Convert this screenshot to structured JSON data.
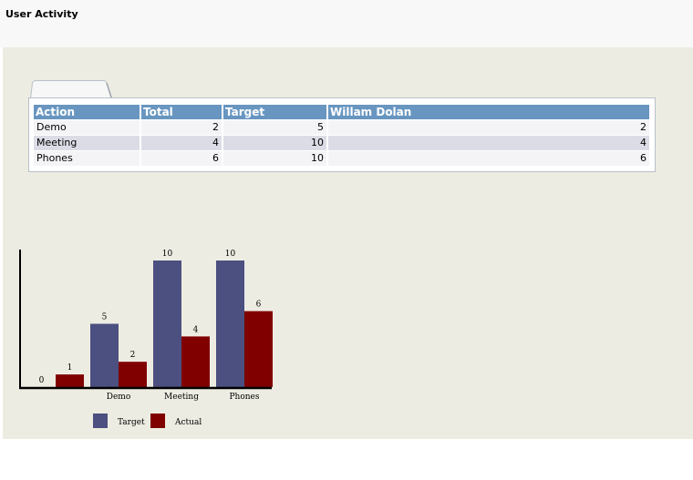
{
  "page": {
    "title": "User Activity"
  },
  "table": {
    "headers": [
      "Action",
      "Total",
      "Target",
      "Willam Dolan"
    ],
    "rows": [
      {
        "action": "Demo",
        "total": "2",
        "target": "5",
        "user": "2"
      },
      {
        "action": "Meeting",
        "total": "4",
        "target": "10",
        "user": "4"
      },
      {
        "action": "Phones",
        "total": "6",
        "target": "10",
        "user": "6"
      }
    ]
  },
  "chart_data": {
    "type": "bar",
    "categories": [
      "",
      "Demo",
      "Meeting",
      "Phones"
    ],
    "series": [
      {
        "name": "Target",
        "values": [
          0,
          5,
          10,
          10
        ],
        "color": "#4b5080"
      },
      {
        "name": "Actual",
        "values": [
          1,
          2,
          4,
          6
        ],
        "color": "#800000"
      }
    ],
    "title": "",
    "xlabel": "",
    "ylabel": "",
    "ylim": [
      0,
      10
    ],
    "grid": false,
    "legend": "bottom"
  }
}
